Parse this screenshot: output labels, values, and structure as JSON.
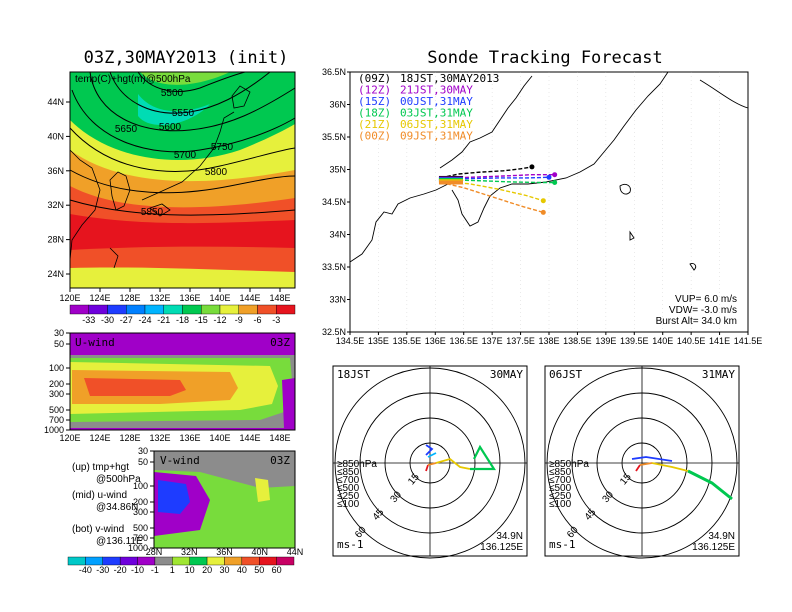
{
  "left_title": "03Z,30MAY2013 (init)",
  "right_title": "Sonde Tracking Forecast",
  "top_panel": {
    "label": "temp(C)+hgt(m)@500hPa",
    "contours": [
      "5500",
      "5550",
      "5600",
      "5650",
      "5700",
      "5750",
      "5800",
      "5850"
    ],
    "x_ticks": [
      "120E",
      "124E",
      "128E",
      "132E",
      "136E",
      "140E",
      "144E",
      "148E"
    ],
    "y_ticks": [
      "24N",
      "28N",
      "32N",
      "36N",
      "40N",
      "44N"
    ],
    "colorbar": [
      "-33",
      "-30",
      "-27",
      "-24",
      "-21",
      "-18",
      "-15",
      "-12",
      "-9",
      "-6",
      "-3"
    ],
    "colorbar_colors": [
      "#a000c8",
      "#6e00dc",
      "#1e3cff",
      "#0080ff",
      "#00b4ff",
      "#00dcb4",
      "#00c850",
      "#78dc3c",
      "#e6f03c",
      "#f0a028",
      "#f05028",
      "#e6141e"
    ]
  },
  "uwind_panel": {
    "label": "U-wind",
    "time": "03Z",
    "y_ticks": [
      "30",
      "50",
      "100",
      "200",
      "300",
      "500",
      "700",
      "1000"
    ],
    "x_ticks": [
      "120E",
      "124E",
      "128E",
      "132E",
      "136E",
      "140E",
      "144E",
      "148E"
    ]
  },
  "vwind_panel": {
    "label": "V-wind",
    "time": "03Z",
    "y_ticks": [
      "30",
      "50",
      "100",
      "200",
      "300",
      "500",
      "700",
      "1000"
    ],
    "x_ticks": [
      "28N",
      "32N",
      "36N",
      "40N",
      "44N"
    ]
  },
  "legend_notes": [
    {
      "line1": "(up) tmp+hgt",
      "line2": "@500hPa"
    },
    {
      "line1": "(mid) u-wind",
      "line2": "@34.86N"
    },
    {
      "line1": "(bot) v-wind",
      "line2": "@136.11E"
    }
  ],
  "wind_colorbar": {
    "labels": [
      "-40",
      "-30",
      "-20",
      "-10",
      "-1",
      "1",
      "10",
      "20",
      "30",
      "40",
      "50",
      "60"
    ],
    "colors": [
      "#00c8c8",
      "#00a0ff",
      "#1e3cff",
      "#6e00dc",
      "#a000c8",
      "#8c8c8c",
      "#a0e632",
      "#00c850",
      "#e6f03c",
      "#f0a028",
      "#f05028",
      "#e6141e",
      "#c80064"
    ]
  },
  "tracking_map": {
    "x_ticks": [
      "134.5E",
      "135E",
      "135.5E",
      "136E",
      "136.5E",
      "137E",
      "137.5E",
      "138E",
      "138.5E",
      "139E",
      "139.5E",
      "140E",
      "140.5E",
      "141E",
      "141.5E"
    ],
    "y_ticks": [
      "36.5N",
      "36N",
      "35.5N",
      "35N",
      "34.5N",
      "34N",
      "33.5N",
      "33N",
      "32.5N"
    ],
    "legend": [
      {
        "run": "(09Z)",
        "text": "18JST,30MAY2013",
        "color": "#000000"
      },
      {
        "run": "(12Z)",
        "text": "21JST,30MAY",
        "color": "#a000c8"
      },
      {
        "run": "(15Z)",
        "text": "00JST,31MAY",
        "color": "#1e3cff"
      },
      {
        "run": "(18Z)",
        "text": "03JST,31MAY",
        "color": "#00c850"
      },
      {
        "run": "(21Z)",
        "text": "06JST,31MAY",
        "color": "#e6c800"
      },
      {
        "run": "(00Z)",
        "text": "09JST,31MAY",
        "color": "#f08c28"
      }
    ],
    "params": [
      "VUP= 6.0 m/s",
      "VDW= -3.0 m/s",
      "Burst Alt= 34.0 km"
    ]
  },
  "hodo_left": {
    "time": "18JST",
    "date": "30MAY",
    "ring_labels": [
      "15",
      "30",
      "45",
      "60"
    ],
    "levels": [
      {
        "text": "≥850hPa",
        "color": "#e6141e"
      },
      {
        "text": "≤850",
        "color": "#f08c28"
      },
      {
        "text": "≤700",
        "color": "#e6c800"
      },
      {
        "text": "≤500",
        "color": "#00c850"
      },
      {
        "text": "≤250",
        "color": "#00b4ff"
      },
      {
        "text": "≤100",
        "color": "#1e3cff"
      }
    ],
    "unit": "ms-1",
    "lat": "34.9N",
    "lon": "136.125E"
  },
  "hodo_right": {
    "time": "06JST",
    "date": "31MAY",
    "ring_labels": [
      "15",
      "30",
      "45",
      "60"
    ],
    "levels": [
      {
        "text": "≥850hPa",
        "color": "#e6141e"
      },
      {
        "text": "≤850",
        "color": "#f08c28"
      },
      {
        "text": "≤700",
        "color": "#e6c800"
      },
      {
        "text": "≤500",
        "color": "#00c850"
      },
      {
        "text": "≤250",
        "color": "#00b4ff"
      },
      {
        "text": "≤100",
        "color": "#1e3cff"
      }
    ],
    "unit": "ms-1",
    "lat": "34.9N",
    "lon": "136.125E"
  },
  "chart_data": [
    {
      "type": "heatmap",
      "title": "03Z,30MAY2013 (init)",
      "annotation": "temp(C)+hgt(m)@500hPa",
      "xlim": [
        120,
        150
      ],
      "ylim": [
        22,
        46
      ],
      "contour_levels": [
        5500,
        5550,
        5600,
        5650,
        5700,
        5750,
        5800,
        5850
      ],
      "colorbar": [
        -33,
        -30,
        -27,
        -24,
        -21,
        -18,
        -15,
        -12,
        -9,
        -6,
        -3
      ]
    },
    {
      "type": "heatmap",
      "title": "U-wind",
      "annotation": "03Z",
      "xlim": [
        120,
        150
      ],
      "ylevels_hPa": [
        30,
        50,
        100,
        200,
        300,
        500,
        700,
        1000
      ]
    },
    {
      "type": "heatmap",
      "title": "V-wind",
      "annotation": "03Z",
      "xlim": [
        28,
        44
      ],
      "ylevels_hPa": [
        30,
        50,
        100,
        200,
        300,
        500,
        700,
        1000
      ],
      "colorbar": [
        -40,
        -30,
        -20,
        -10,
        -1,
        1,
        10,
        20,
        30,
        40,
        50,
        60
      ]
    },
    {
      "type": "line",
      "title": "Sonde Tracking Forecast",
      "xlim": [
        134.5,
        141.5
      ],
      "ylim": [
        32.5,
        36.5
      ],
      "series": [
        {
          "name": "(09Z)",
          "color": "#000000",
          "x": [
            136.1,
            136.4,
            136.8,
            137.2,
            137.5,
            137.7
          ],
          "y": [
            34.87,
            34.93,
            34.96,
            34.98,
            35.01,
            35.04
          ]
        },
        {
          "name": "(12Z)",
          "color": "#a000c8",
          "x": [
            136.1,
            136.6,
            137.2,
            137.7,
            138.1
          ],
          "y": [
            34.86,
            34.88,
            34.9,
            34.92,
            34.92
          ]
        },
        {
          "name": "(15Z)",
          "color": "#1e3cff",
          "x": [
            136.1,
            136.6,
            137.1,
            137.6,
            138.0
          ],
          "y": [
            34.85,
            34.86,
            34.87,
            34.87,
            34.88
          ]
        },
        {
          "name": "(18Z)",
          "color": "#00c850",
          "x": [
            136.1,
            136.7,
            137.3,
            137.8,
            138.1
          ],
          "y": [
            34.84,
            34.83,
            34.81,
            34.8,
            34.8
          ]
        },
        {
          "name": "(21Z)",
          "color": "#e6c800",
          "x": [
            136.1,
            136.6,
            137.1,
            137.6,
            137.9
          ],
          "y": [
            34.82,
            34.78,
            34.7,
            34.6,
            34.52
          ]
        },
        {
          "name": "(00Z)",
          "color": "#f08c28",
          "x": [
            136.1,
            136.5,
            137.0,
            137.5,
            137.9
          ],
          "y": [
            34.8,
            34.72,
            34.58,
            34.44,
            34.34
          ]
        }
      ]
    }
  ]
}
